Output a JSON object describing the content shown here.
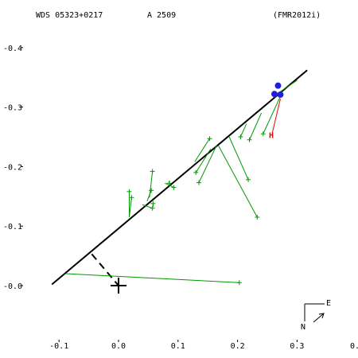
{
  "header": {
    "designation": "WDS 05323+0217",
    "discoverer": "A  2509",
    "reference": "(FMR2012i)"
  },
  "compass": {
    "north": "N",
    "east": "E"
  },
  "chart_data": {
    "type": "scatter",
    "title": "",
    "xlabel": "",
    "ylabel": "",
    "xlim": [
      -0.1,
      0.4
    ],
    "ylim": [
      -0.1,
      0.4
    ],
    "x_ticks": [
      -0.1,
      0.0,
      0.1,
      0.2,
      0.3
    ],
    "x_tick_labels": [
      "-0.1",
      "0.0",
      "0.1",
      "0.2",
      "0.3"
    ],
    "y_ticks": [
      0.0,
      0.1,
      0.2,
      0.3,
      0.4
    ],
    "y_tick_labels": [
      "-0.0",
      "-0.1",
      "-0.2",
      "-0.3",
      "-0.4"
    ],
    "x_edge_label": "0.",
    "grid": false,
    "primary": {
      "x": 0.0,
      "y": 0.0
    },
    "orbit_line": {
      "from": [
        -0.112,
        0.002
      ],
      "to": [
        0.317,
        0.362
      ]
    },
    "node_line": {
      "from": [
        -0.045,
        0.053
      ],
      "to": [
        0.0,
        0.0
      ]
    },
    "green_measures": [
      {
        "obs": [
          0.203,
          0.005
        ],
        "pred": [
          -0.088,
          0.02
        ]
      },
      {
        "obs": [
          0.233,
          0.115
        ],
        "pred": [
          0.168,
          0.235
        ]
      },
      {
        "obs": [
          0.218,
          0.178
        ],
        "pred": [
          0.186,
          0.25
        ]
      },
      {
        "obs": [
          0.135,
          0.173
        ],
        "pred": [
          0.165,
          0.236
        ]
      },
      {
        "obs": [
          0.13,
          0.19
        ],
        "pred": [
          0.155,
          0.23
        ]
      },
      {
        "obs": [
          0.153,
          0.247
        ],
        "pred": [
          0.128,
          0.208
        ]
      },
      {
        "obs": [
          0.093,
          0.165
        ],
        "pred": [
          0.078,
          0.172
        ]
      },
      {
        "obs": [
          0.085,
          0.172
        ],
        "pred": [
          0.086,
          0.176
        ]
      },
      {
        "obs": [
          0.057,
          0.192
        ],
        "pred": [
          0.052,
          0.148
        ]
      },
      {
        "obs": [
          0.055,
          0.16
        ],
        "pred": [
          0.048,
          0.142
        ]
      },
      {
        "obs": [
          0.057,
          0.13
        ],
        "pred": [
          0.04,
          0.136
        ]
      },
      {
        "obs": [
          0.022,
          0.148
        ],
        "pred": [
          0.018,
          0.115
        ]
      },
      {
        "obs": [
          0.018,
          0.158
        ],
        "pred": [
          0.018,
          0.115
        ]
      },
      {
        "obs": [
          0.058,
          0.138
        ],
        "pred": [
          0.058,
          0.132
        ]
      },
      {
        "obs": [
          0.205,
          0.25
        ],
        "pred": [
          0.215,
          0.272
        ]
      },
      {
        "obs": [
          0.22,
          0.245
        ],
        "pred": [
          0.24,
          0.29
        ]
      },
      {
        "obs": [
          0.243,
          0.255
        ],
        "pred": [
          0.272,
          0.318
        ]
      },
      {
        "obs": [
          0.263,
          0.32
        ],
        "pred": [
          0.3,
          0.345
        ]
      }
    ],
    "red_measure": {
      "obs": [
        0.258,
        0.255
      ],
      "pred": [
        0.272,
        0.314
      ],
      "label": "H"
    },
    "blue_points": [
      {
        "x": 0.262,
        "y": 0.322
      },
      {
        "x": 0.268,
        "y": 0.336
      },
      {
        "x": 0.272,
        "y": 0.321
      }
    ]
  }
}
